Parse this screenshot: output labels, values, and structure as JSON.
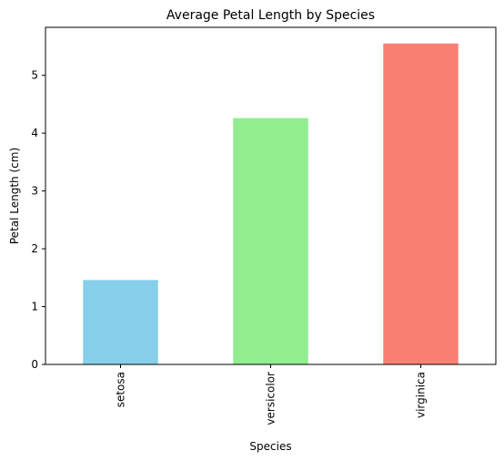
{
  "chart_data": {
    "type": "bar",
    "title": "Average Petal Length by Species",
    "xlabel": "Species",
    "ylabel": "Petal Length (cm)",
    "categories": [
      "setosa",
      "versicolor",
      "virginica"
    ],
    "values": [
      1.46,
      4.26,
      5.55
    ],
    "colors": [
      "#87CEEB",
      "#90EE90",
      "#FA8072"
    ],
    "ylim": [
      0,
      5.83
    ],
    "yticks": [
      "0",
      "1",
      "2",
      "3",
      "4",
      "5"
    ],
    "grid": false,
    "legend": "none"
  }
}
